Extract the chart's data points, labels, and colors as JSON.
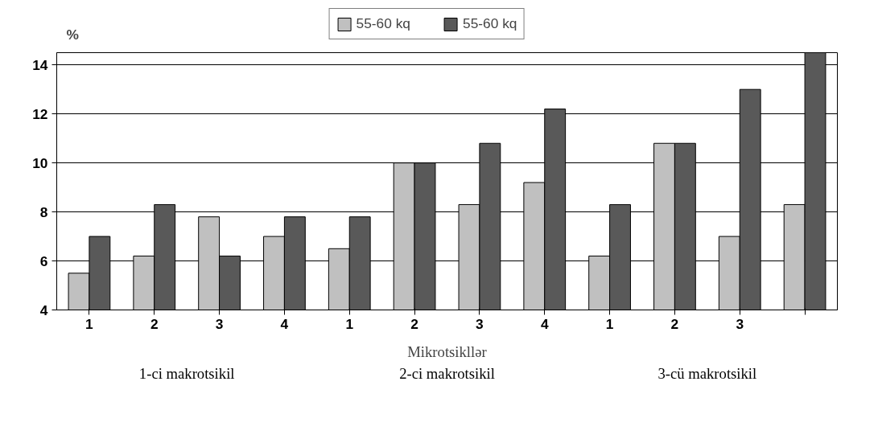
{
  "chart_data": {
    "type": "bar",
    "ylabel": "%",
    "xlabel": "Mikrotsikllər",
    "categories": [
      "1",
      "2",
      "3",
      "4",
      "1",
      "2",
      "3",
      "4",
      "1",
      "2",
      "3",
      null
    ],
    "series": [
      {
        "name": "55-60 kq",
        "color": "#c0c0c0",
        "values": [
          5.5,
          6.2,
          7.8,
          7.0,
          6.5,
          10.0,
          8.3,
          9.2,
          6.2,
          10.8,
          7.0,
          8.3
        ]
      },
      {
        "name": "55-60 kq",
        "color": "#595959",
        "values": [
          7.0,
          8.3,
          6.2,
          7.8,
          7.8,
          10.0,
          10.8,
          12.2,
          8.3,
          10.8,
          13.0,
          14.5
        ]
      }
    ],
    "ylim": [
      4,
      14.5
    ],
    "yticks": [
      4,
      6,
      8,
      10,
      12,
      14
    ],
    "grid": "y",
    "legend": "top",
    "annotations": [
      "1-ci makrotsikil",
      "2-ci makrotsikil",
      "3-cü makrotsikil"
    ]
  }
}
